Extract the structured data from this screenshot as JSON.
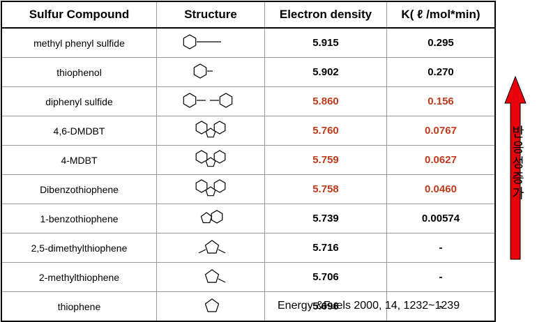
{
  "table": {
    "header": [
      "Sulfur Compound",
      "Structure",
      "Electron density",
      "K( ℓ /mol*min)"
    ],
    "rows": [
      {
        "name": "methyl phenyl sulfide",
        "density": "5.915",
        "k": "0.295",
        "color": "#000000"
      },
      {
        "name": "thiophenol",
        "density": "5.902",
        "k": "0.270",
        "color": "#000000"
      },
      {
        "name": "diphenyl sulfide",
        "density": "5.860",
        "k": "0.156",
        "color": "#c0391b"
      },
      {
        "name": "4,6-DMDBT",
        "density": "5.760",
        "k": "0.0767",
        "color": "#c0391b"
      },
      {
        "name": "4-MDBT",
        "density": "5.759",
        "k": "0.0627",
        "color": "#c0391b"
      },
      {
        "name": "Dibenzothiophene",
        "density": "5.758",
        "k": "0.0460",
        "color": "#c0391b"
      },
      {
        "name": "1-benzothiophene",
        "density": "5.739",
        "k": "0.00574",
        "color": "#000000"
      },
      {
        "name": "2,5-dimethylthiophene",
        "density": "5.716",
        "k": "-",
        "color": "#000000"
      },
      {
        "name": "2-methylthiophene",
        "density": "5.706",
        "k": "-",
        "color": "#000000"
      },
      {
        "name": "thiophene",
        "density": "5.696",
        "k": "-",
        "color": "#000000"
      }
    ]
  },
  "arrow_label": "반응성 증가",
  "citation": "Energy &Fuels 2000, 14, 1232~1239"
}
